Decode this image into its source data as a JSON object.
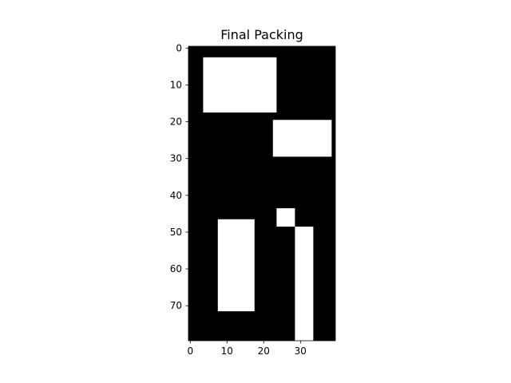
{
  "chart_data": {
    "type": "heatmap",
    "title": "Final Packing",
    "xlabel": "",
    "ylabel": "",
    "grid": false,
    "y_axis_inverted": true,
    "grid_width": 40,
    "grid_height": 80,
    "xlim": [
      -0.5,
      39.5
    ],
    "ylim": [
      79.5,
      -0.5
    ],
    "x_ticks": [
      0,
      10,
      20,
      30
    ],
    "y_ticks": [
      0,
      10,
      20,
      30,
      40,
      50,
      60,
      70
    ],
    "colormap": {
      "empty": "#000000",
      "filled": "#ffffff"
    },
    "filled_rects": [
      {
        "x0": 4,
        "x1": 23,
        "y0": 3,
        "y1": 17
      },
      {
        "x0": 23,
        "x1": 38,
        "y0": 20,
        "y1": 29
      },
      {
        "x0": 24,
        "x1": 28,
        "y0": 44,
        "y1": 48
      },
      {
        "x0": 8,
        "x1": 17,
        "y0": 47,
        "y1": 71
      },
      {
        "x0": 29,
        "x1": 33,
        "y0": 49,
        "y1": 79
      }
    ]
  }
}
